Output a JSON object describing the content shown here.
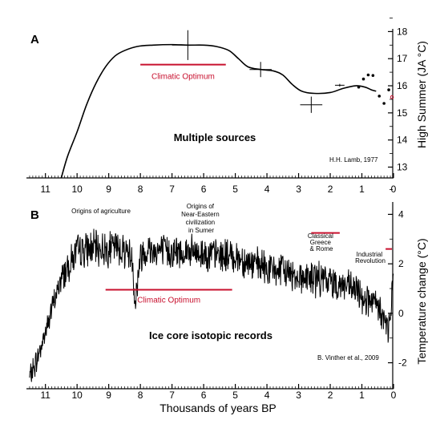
{
  "colors": {
    "line": "#000000",
    "accent": "#c8102e"
  },
  "chart_data": [
    {
      "type": "line",
      "panel_label": "A",
      "ylabel": "High Summer (JA °C)",
      "xlabel": "",
      "x_reversed": true,
      "xlim": [
        11.6,
        0
      ],
      "ylim": [
        12.6,
        18.1
      ],
      "x_ticks": [
        11,
        10,
        9,
        8,
        7,
        6,
        5,
        4,
        3,
        2,
        1,
        0
      ],
      "y_ticks": [
        13,
        14,
        15,
        16,
        17,
        18
      ],
      "grid": false,
      "center_text": "Multiple sources",
      "credit": "H.H. Lamb, 1977",
      "series": [
        {
          "x": [
            10.5,
            10.3,
            10.0,
            9.7,
            9.4,
            9.1,
            8.8,
            8.5,
            8.1,
            7.6,
            7.0,
            6.5,
            6.0,
            5.6,
            5.2,
            4.9,
            4.6,
            4.2,
            3.8,
            3.5,
            3.2,
            2.9,
            2.5,
            2.0,
            1.6,
            1.2,
            0.9,
            0.7,
            0.55
          ],
          "y": [
            12.6,
            13.4,
            14.3,
            15.3,
            16.1,
            16.7,
            17.1,
            17.3,
            17.45,
            17.5,
            17.52,
            17.5,
            17.5,
            17.45,
            17.3,
            17.0,
            16.7,
            16.6,
            16.55,
            16.4,
            16.05,
            15.8,
            15.72,
            15.75,
            15.9,
            16.0,
            15.95,
            15.85,
            15.8
          ]
        }
      ],
      "error_bars": [
        {
          "x": 6.5,
          "y": 17.5,
          "xerr": 0.5,
          "yerr": 0.55
        },
        {
          "x": 4.2,
          "y": 16.6,
          "xerr": 0.35,
          "yerr": 0.28
        },
        {
          "x": 2.6,
          "y": 15.3,
          "xerr": 0.35,
          "yerr": 0.3
        },
        {
          "x": 1.7,
          "y": 16.02,
          "xerr": 0.15,
          "yerr": 0.05
        }
      ],
      "black_points": [
        {
          "x": 1.1,
          "y": 15.95
        },
        {
          "x": 0.95,
          "y": 16.25
        },
        {
          "x": 0.8,
          "y": 16.4
        },
        {
          "x": 0.65,
          "y": 16.38
        },
        {
          "x": 0.45,
          "y": 15.62
        },
        {
          "x": 0.3,
          "y": 15.35
        },
        {
          "x": 0.15,
          "y": 15.85
        }
      ],
      "red_points": [
        {
          "x": 0.05,
          "y": 15.58
        }
      ],
      "annotations": [
        {
          "text": "Climatic Optimum",
          "x_start": 8.0,
          "x_end": 5.3,
          "y": 16.78
        }
      ]
    },
    {
      "type": "line",
      "panel_label": "B",
      "ylabel": "Temperature change (°C)",
      "xlabel": "Thousands of years BP",
      "x_reversed": true,
      "xlim": [
        11.6,
        0
      ],
      "ylim": [
        -3.05,
        4.5
      ],
      "x_ticks": [
        11,
        10,
        9,
        8,
        7,
        6,
        5,
        4,
        3,
        2,
        1,
        0
      ],
      "y_ticks": [
        -2,
        0,
        2,
        4
      ],
      "grid": false,
      "center_text": "Ice core isotopic records",
      "credit": "B. Vinther et al., 2009",
      "series_note": "noisy proxy record",
      "series": [
        {
          "x": [
            11.5,
            11.3,
            11.1,
            10.9,
            10.7,
            10.5,
            10.3,
            10.1,
            10.0,
            9.8,
            9.5,
            9.2,
            9.0,
            8.8,
            8.6,
            8.4,
            8.25,
            8.2,
            8.15,
            8.1,
            8.0,
            7.8,
            7.5,
            7.2,
            7.0,
            6.8,
            6.5,
            6.2,
            6.0,
            5.8,
            5.5,
            5.2,
            5.0,
            4.8,
            4.5,
            4.2,
            4.0,
            3.8,
            3.5,
            3.2,
            3.0,
            2.8,
            2.5,
            2.2,
            2.0,
            1.8,
            1.5,
            1.2,
            1.0,
            0.8,
            0.6,
            0.4,
            0.3,
            0.2,
            0.1,
            0.05,
            0.0
          ],
          "y": [
            -2.6,
            -2.0,
            -1.2,
            -0.3,
            0.6,
            1.4,
            1.9,
            2.3,
            2.5,
            2.55,
            2.65,
            2.6,
            2.6,
            2.7,
            2.6,
            2.5,
            2.2,
            1.0,
            0.5,
            1.2,
            2.3,
            2.6,
            2.55,
            2.5,
            2.5,
            2.45,
            2.5,
            2.4,
            2.45,
            2.35,
            2.35,
            2.3,
            2.3,
            2.2,
            2.0,
            1.9,
            1.8,
            1.75,
            1.7,
            1.6,
            1.5,
            1.45,
            1.4,
            1.35,
            1.3,
            1.2,
            1.1,
            0.9,
            0.7,
            0.5,
            0.3,
            0.1,
            -0.3,
            -0.6,
            -0.4,
            0.8,
            1.6
          ]
        }
      ],
      "annotations": [
        {
          "text": "Climatic Optimum",
          "x_start": 9.1,
          "x_end": 5.1,
          "y": 0.95
        },
        {
          "text": "Classical Greece & Rome",
          "x_start": 2.6,
          "x_end": 1.7,
          "y": 3.25
        },
        {
          "text": "Industrial Revolution",
          "x_start": 0.25,
          "x_end": 0.05,
          "y": 2.6
        }
      ],
      "labels": [
        {
          "text": "Origins of agriculture"
        },
        {
          "text": "Origins of Near-Eastern civilization in Sumer"
        }
      ]
    }
  ]
}
